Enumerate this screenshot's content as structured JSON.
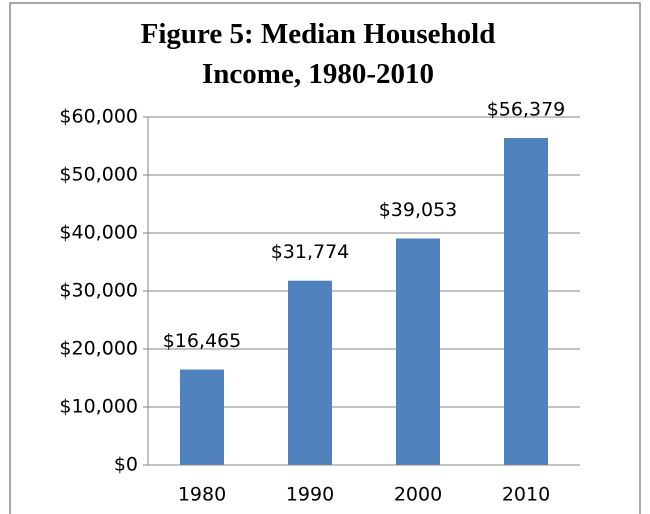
{
  "chart_data": {
    "type": "bar",
    "title": "Figure 5: Median Household Income, 1980-2010",
    "categories": [
      "1980",
      "1990",
      "2000",
      "2010"
    ],
    "values": [
      16465,
      31774,
      39053,
      56379
    ],
    "value_labels": [
      "$16,465",
      "$31,774",
      "$39,053",
      "$56,379"
    ],
    "color": "#4f81bd",
    "ylim": [
      0,
      60000
    ],
    "yticks": [
      {
        "value": 0,
        "label": "$0"
      },
      {
        "value": 10000,
        "label": "$10,000"
      },
      {
        "value": 20000,
        "label": "$20,000"
      },
      {
        "value": 30000,
        "label": "$30,000"
      },
      {
        "value": 40000,
        "label": "$40,000"
      },
      {
        "value": 50000,
        "label": "$50,000"
      },
      {
        "value": 60000,
        "label": "$60,000"
      }
    ],
    "grid": true
  }
}
